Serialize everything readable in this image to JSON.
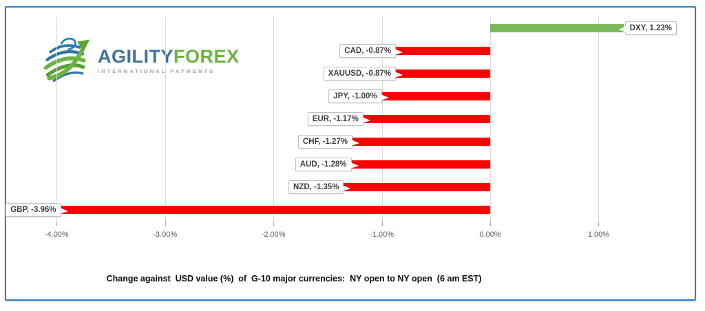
{
  "logo": {
    "brand_primary": "AGILITY",
    "brand_secondary": "FOREX",
    "tagline": "INTERNATIONAL PAYMENTS",
    "colors": {
      "primary_blue": "#41719C",
      "accent_green": "#6CB33F",
      "tagline_gray": "#9AA4AB"
    }
  },
  "frame": {
    "border_color": "#2E81C4"
  },
  "chart_data": {
    "type": "bar",
    "orientation": "horizontal",
    "title": "Change against  USD value (%)  of  G-10 major currencies:  NY open to NY open  (6 am EST)",
    "categories": [
      "DXY",
      "CAD",
      "XAUUSD",
      "JPY",
      "EUR",
      "CHF",
      "AUD",
      "NZD",
      "GBP"
    ],
    "values": [
      1.23,
      -0.87,
      -0.87,
      -1.0,
      -1.17,
      -1.27,
      -1.28,
      -1.35,
      -3.96
    ],
    "labels": [
      "DXY, 1.23%",
      "CAD, -0.87%",
      "XAUUSD, -0.87%",
      "JPY, -1.00%",
      "EUR, -1.17%",
      "CHF, -1.27%",
      "AUD, -1.28%",
      "NZD, -1.35%",
      "GBP, -3.96%"
    ],
    "x_ticks": [
      "-4.00%",
      "-3.00%",
      "-2.00%",
      "-1.00%",
      "0.00%",
      "1.00%"
    ],
    "x_tick_values": [
      -4,
      -3,
      -2,
      -1,
      0,
      1
    ],
    "xlim": [
      -4.37,
      1.88
    ],
    "xlabel": "",
    "ylabel": "",
    "grid": true,
    "legend": false,
    "positive_color": "#7BB85A",
    "negative_color": "#FF0000",
    "gridline_color": "#D9D9D9",
    "tick_label_color": "#595959",
    "data_label_color": "#3F3F3F"
  }
}
